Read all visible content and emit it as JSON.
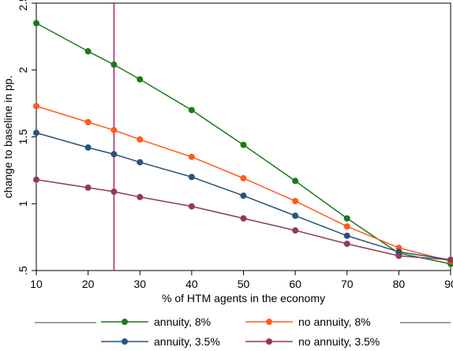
{
  "chart_data": {
    "type": "line",
    "title": "",
    "xlabel": "% of HTM agents in the economy",
    "ylabel": "change to baseline in pp.",
    "x": [
      10,
      20,
      25,
      30,
      40,
      50,
      60,
      70,
      80,
      90
    ],
    "xticks": [
      10,
      20,
      30,
      40,
      50,
      60,
      70,
      80,
      90
    ],
    "xtick_labels": [
      "10",
      "20",
      "30",
      "40",
      "50",
      "60",
      "70",
      "80",
      "90"
    ],
    "yticks": [
      0.5,
      1,
      1.5,
      2,
      2.5
    ],
    "ytick_labels": [
      ".5",
      "1",
      "1.5",
      "2",
      "2.5"
    ],
    "xlim": [
      10,
      90
    ],
    "ylim": [
      0.5,
      2.5
    ],
    "grid": "none",
    "vertical_line_x": 25,
    "legend_position": "bottom",
    "series": [
      {
        "name": "annuity, 8%",
        "color": "#1a7a1a",
        "values": [
          2.35,
          2.14,
          2.04,
          1.93,
          1.7,
          1.44,
          1.17,
          0.89,
          0.63,
          0.55
        ]
      },
      {
        "name": "no annuity, 8%",
        "color": "#ff5a1e",
        "values": [
          1.73,
          1.61,
          1.55,
          1.48,
          1.35,
          1.19,
          1.02,
          0.83,
          0.67,
          0.57
        ]
      },
      {
        "name": "annuity, 3.5%",
        "color": "#2a5278",
        "values": [
          1.53,
          1.42,
          1.37,
          1.31,
          1.2,
          1.06,
          0.91,
          0.76,
          0.64,
          0.58
        ]
      },
      {
        "name": "no annuity, 3.5%",
        "color": "#903c4e",
        "values": [
          1.18,
          1.12,
          1.09,
          1.05,
          0.98,
          0.89,
          0.8,
          0.7,
          0.61,
          0.58
        ]
      }
    ],
    "colors": {
      "vertical_line": "#b02060",
      "frame": "#000000",
      "legend_rule": "#a0a0a0"
    }
  }
}
